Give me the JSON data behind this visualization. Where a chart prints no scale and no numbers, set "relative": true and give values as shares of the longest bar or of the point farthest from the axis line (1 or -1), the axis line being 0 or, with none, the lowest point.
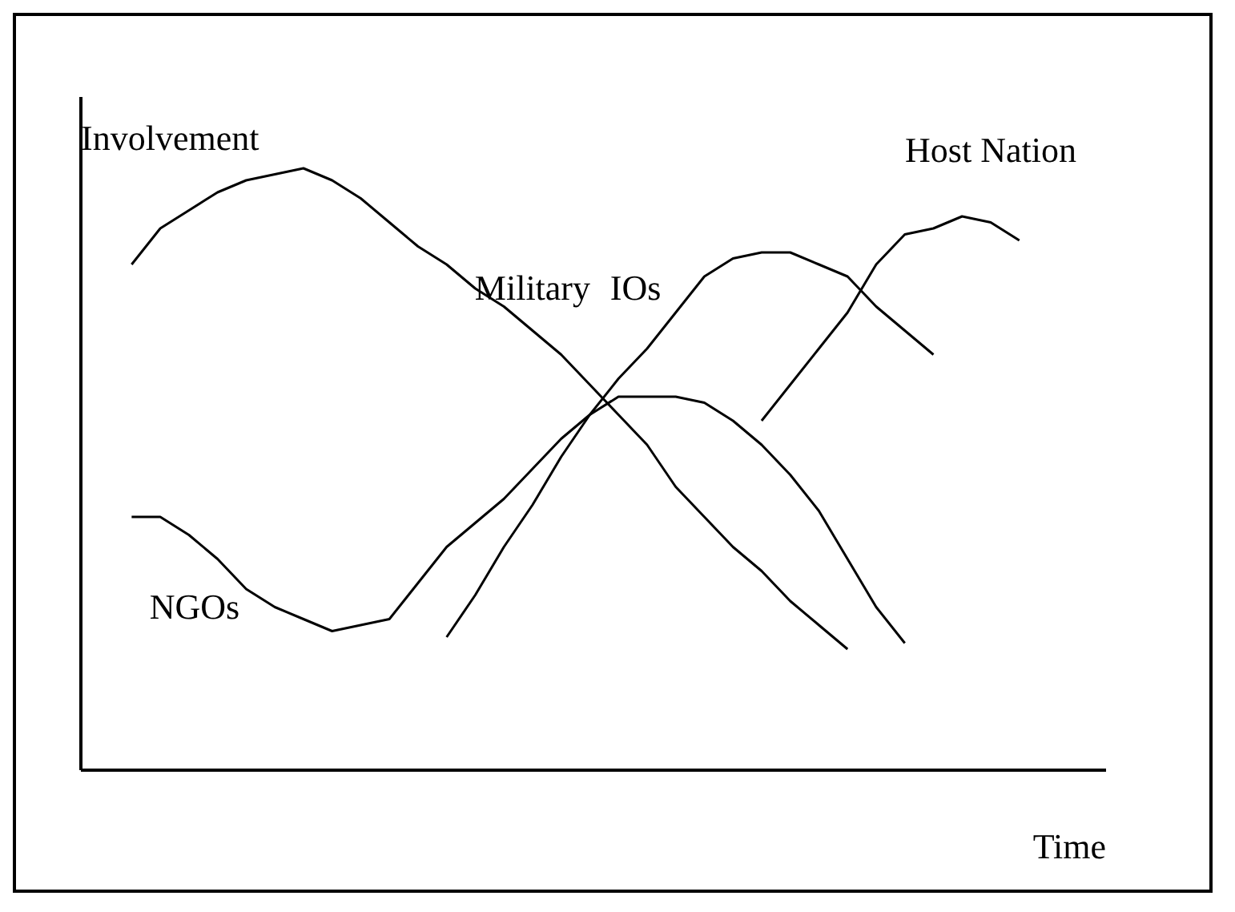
{
  "chart_data": {
    "type": "line",
    "relative": true,
    "xlabel": "Time",
    "ylabel": "Involvement",
    "grid": false,
    "tick_labels": false,
    "categories": [
      null,
      null,
      null,
      null,
      null,
      null,
      null,
      null,
      null,
      null,
      null,
      null,
      null,
      null,
      null,
      null,
      null,
      null,
      null,
      null,
      null,
      null,
      null,
      null,
      null,
      null,
      null,
      null,
      null,
      null,
      null,
      null,
      null,
      null,
      null
    ],
    "series": [
      {
        "name": "Military",
        "color": "#000000",
        "values": [
          null,
          0.84,
          0.9,
          0.93,
          0.96,
          0.98,
          0.99,
          1,
          0.98,
          0.95,
          0.91,
          0.87,
          0.84,
          0.8,
          0.77,
          0.73,
          0.69,
          0.64,
          0.59,
          0.54,
          0.47,
          0.42,
          0.37,
          0.33,
          0.28,
          0.24,
          0.2,
          null,
          null,
          null,
          null,
          null,
          null,
          null,
          null
        ]
      },
      {
        "name": "NGOs",
        "color": "#000000",
        "values": [
          null,
          0.42,
          0.42,
          0.39,
          0.35,
          0.3,
          0.27,
          0.25,
          0.23,
          0.24,
          0.25,
          0.31,
          0.37,
          0.41,
          0.45,
          0.5,
          0.55,
          0.59,
          0.62,
          0.62,
          0.62,
          0.61,
          0.58,
          0.54,
          0.49,
          0.43,
          0.35,
          0.27,
          0.21,
          null,
          null,
          null,
          null,
          null,
          null
        ]
      },
      {
        "name": "IOs",
        "color": "#000000",
        "values": [
          null,
          null,
          null,
          null,
          null,
          null,
          null,
          null,
          null,
          null,
          null,
          null,
          0.22,
          0.29,
          0.37,
          0.44,
          0.52,
          0.59,
          0.65,
          0.7,
          0.76,
          0.82,
          0.85,
          0.86,
          0.86,
          0.84,
          0.82,
          0.77,
          0.73,
          0.69,
          null,
          null,
          null,
          null,
          null
        ]
      },
      {
        "name": "Host Nation",
        "color": "#000000",
        "values": [
          null,
          null,
          null,
          null,
          null,
          null,
          null,
          null,
          null,
          null,
          null,
          null,
          null,
          null,
          null,
          null,
          null,
          null,
          null,
          null,
          null,
          null,
          null,
          0.58,
          0.64,
          0.7,
          0.76,
          0.84,
          0.89,
          0.9,
          0.92,
          0.91,
          0.88,
          null,
          null
        ]
      }
    ]
  }
}
